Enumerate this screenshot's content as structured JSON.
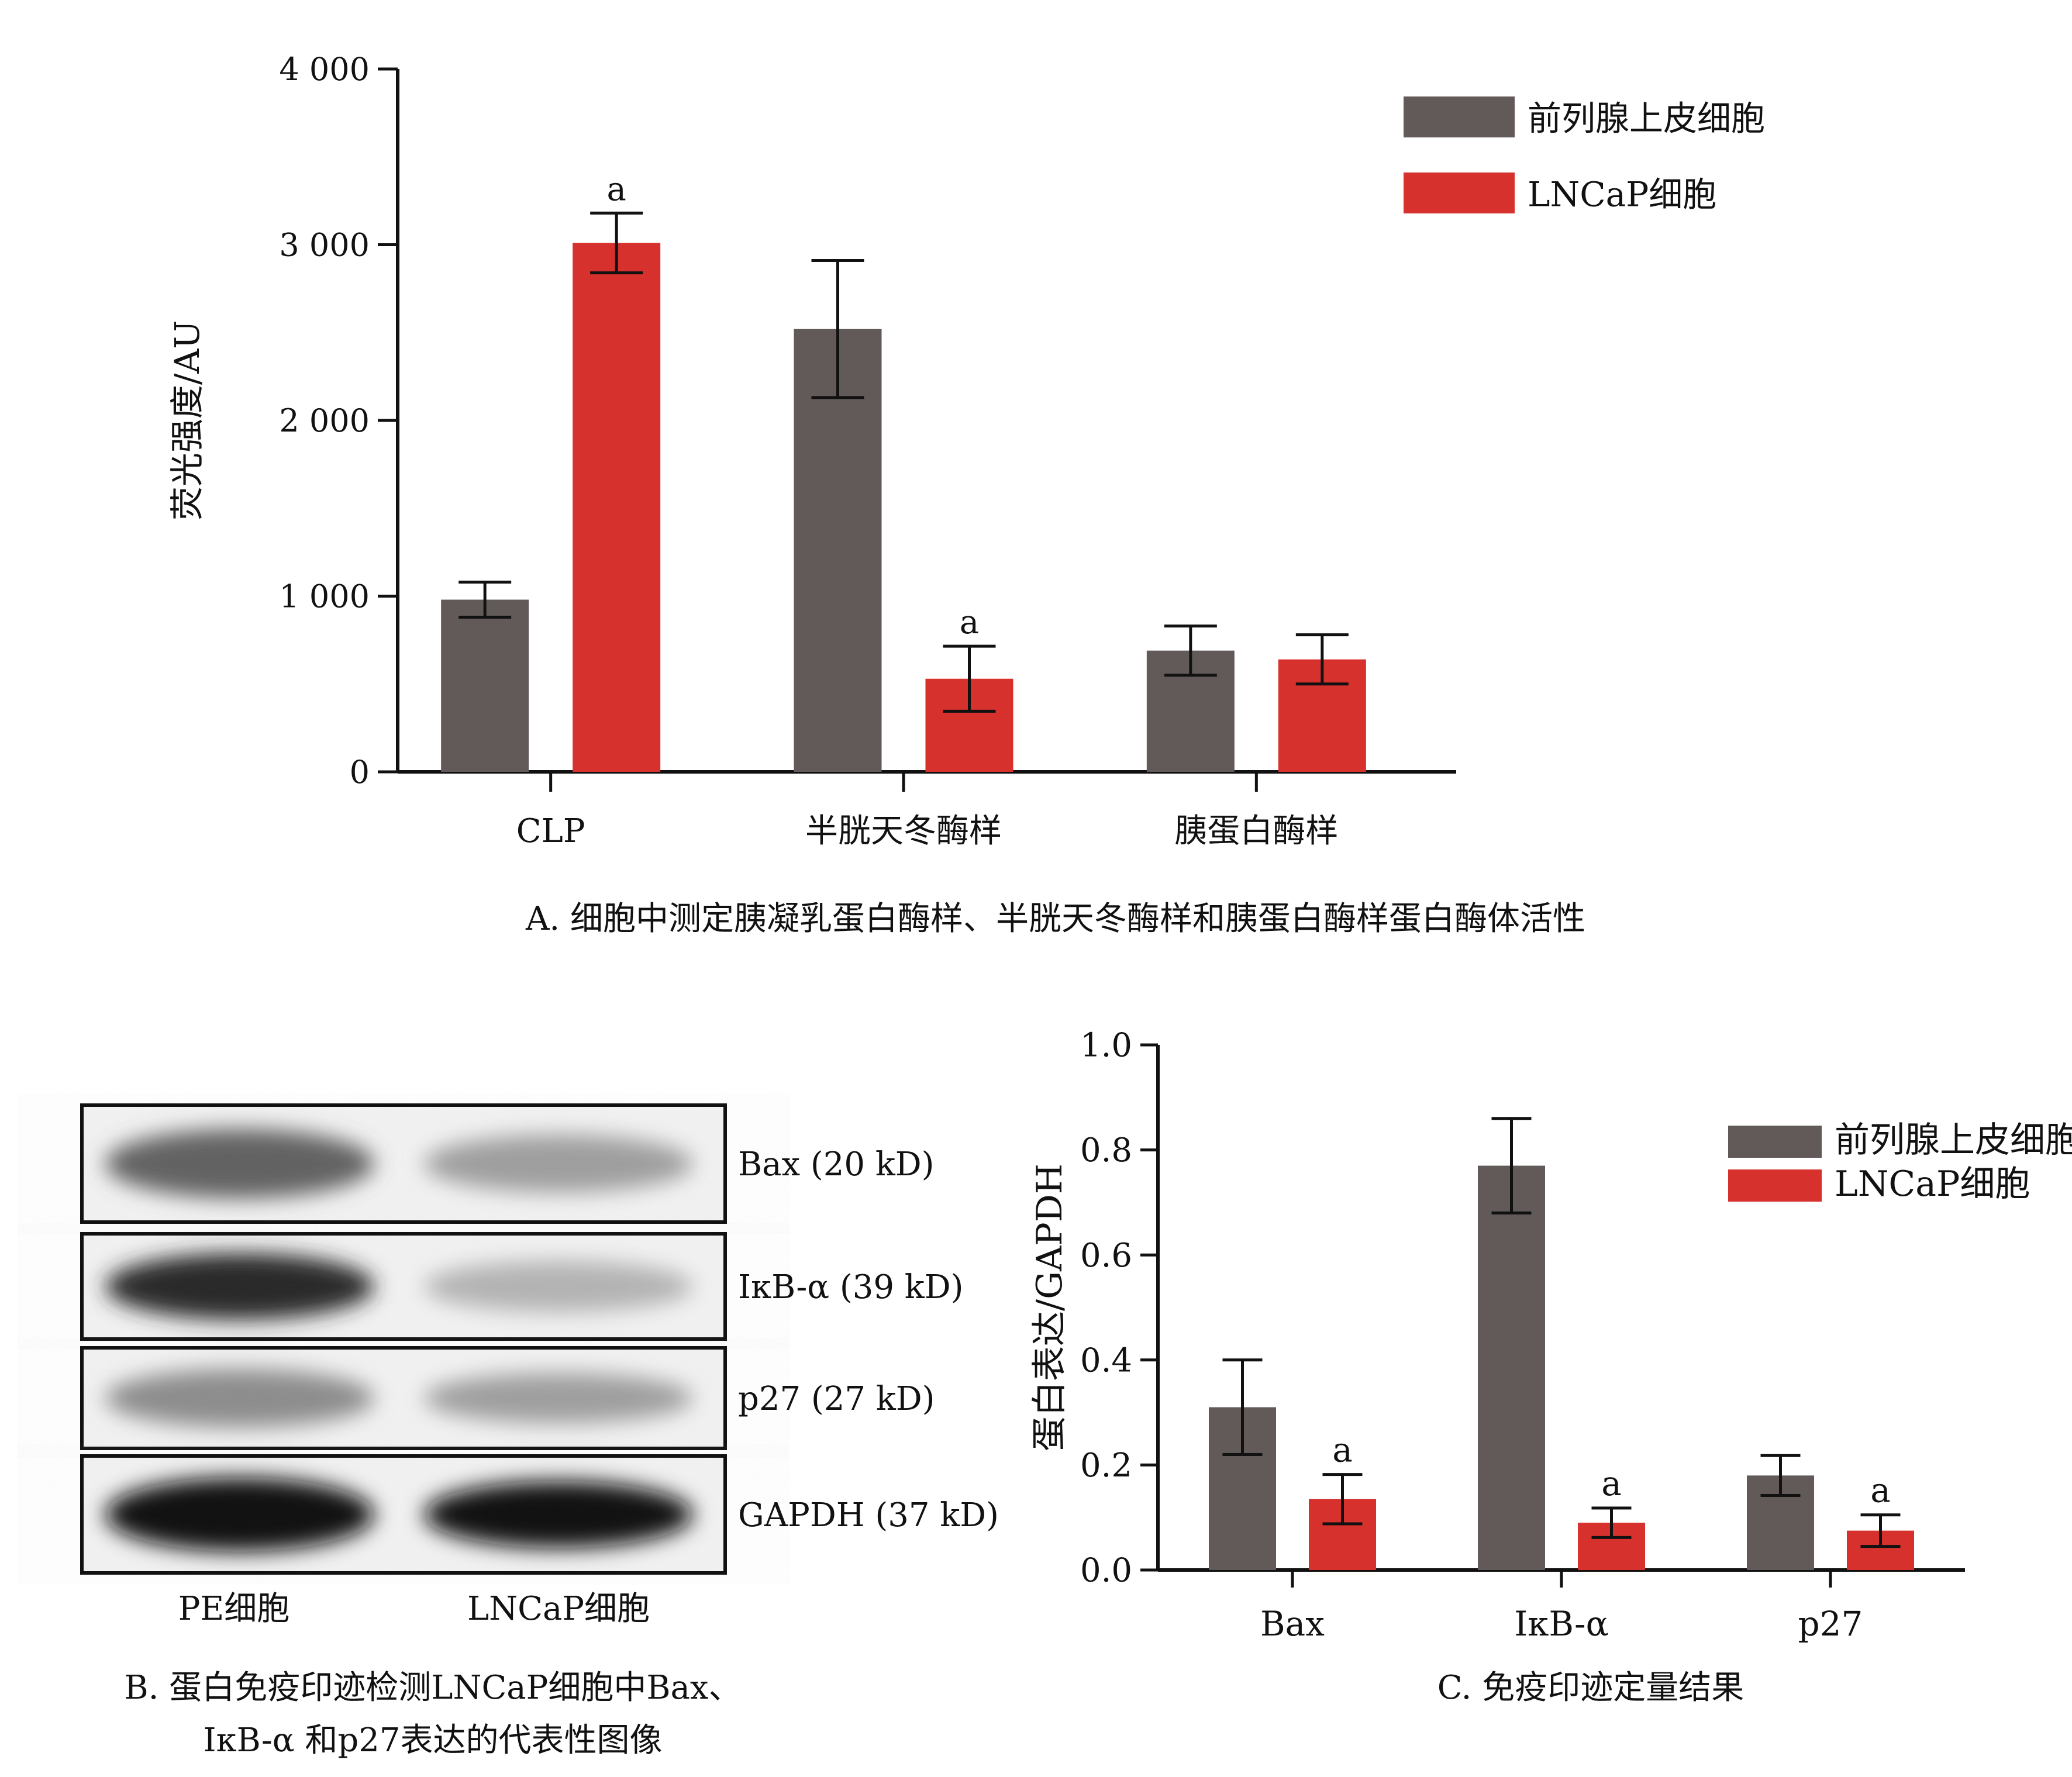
{
  "colors": {
    "normal": "#625a58",
    "lncap": "#d6312d",
    "axis": "#111111"
  },
  "panelA": {
    "caption": "A. 细胞中测定胰凝乳蛋白酶样、半胱天冬酶样和胰蛋白酶样蛋白酶体活性",
    "chart_data": {
      "type": "bar",
      "categories": [
        "CLP",
        "半胱天冬酶样",
        "胰蛋白酶样"
      ],
      "ylabel": "荧光强度/AU",
      "xlabel": "",
      "ylim": [
        0,
        4000
      ],
      "yticks": [
        0,
        1000,
        2000,
        3000,
        4000
      ],
      "ytick_labels": [
        "0",
        "1 000",
        "2 000",
        "3 000",
        "4 000"
      ],
      "legend_position": "top-right",
      "series": [
        {
          "name": "前列腺上皮细胞",
          "values": [
            980,
            2520,
            690
          ],
          "errors": [
            100,
            390,
            140
          ],
          "annotations": [
            "",
            "",
            ""
          ]
        },
        {
          "name": "LNCaP细胞",
          "values": [
            3010,
            530,
            640
          ],
          "errors": [
            170,
            185,
            140
          ],
          "annotations": [
            "a",
            "a",
            ""
          ]
        }
      ]
    }
  },
  "panelB": {
    "caption_line1": "B. 蛋白免疫印迹检测LNCaP细胞中Bax、",
    "caption_line2": "IκB-α 和p27表达的代表性图像",
    "rows": [
      {
        "label": "Bax (20 kD)",
        "band1": 0.62,
        "band2": 0.38
      },
      {
        "label": "IκB-α (39 kD)",
        "band1": 0.85,
        "band2": 0.3
      },
      {
        "label": "p27 (27 kD)",
        "band1": 0.45,
        "band2": 0.38
      },
      {
        "label": "GAPDH (37 kD)",
        "band1": 0.95,
        "band2": 0.95
      }
    ],
    "lanes": [
      "PE细胞",
      "LNCaP细胞"
    ]
  },
  "panelC": {
    "caption": "C. 免疫印迹定量结果",
    "chart_data": {
      "type": "bar",
      "categories": [
        "Bax",
        "IκB-α",
        "p27"
      ],
      "ylabel": "蛋白表达/GAPDH",
      "xlabel": "",
      "ylim": [
        0,
        1.0
      ],
      "yticks": [
        0,
        0.2,
        0.4,
        0.6,
        0.8,
        1.0
      ],
      "ytick_labels": [
        "0.0",
        "0.2",
        "0.4",
        "0.6",
        "0.8",
        "1.0"
      ],
      "legend_position": "top-right",
      "series": [
        {
          "name": "前列腺上皮细胞",
          "values": [
            0.31,
            0.77,
            0.18
          ],
          "errors": [
            0.09,
            0.09,
            0.038
          ],
          "annotations": [
            "",
            "",
            ""
          ]
        },
        {
          "name": "LNCaP细胞",
          "values": [
            0.135,
            0.09,
            0.075
          ],
          "errors": [
            0.047,
            0.028,
            0.03
          ],
          "annotations": [
            "a",
            "a",
            "a"
          ]
        }
      ]
    }
  }
}
